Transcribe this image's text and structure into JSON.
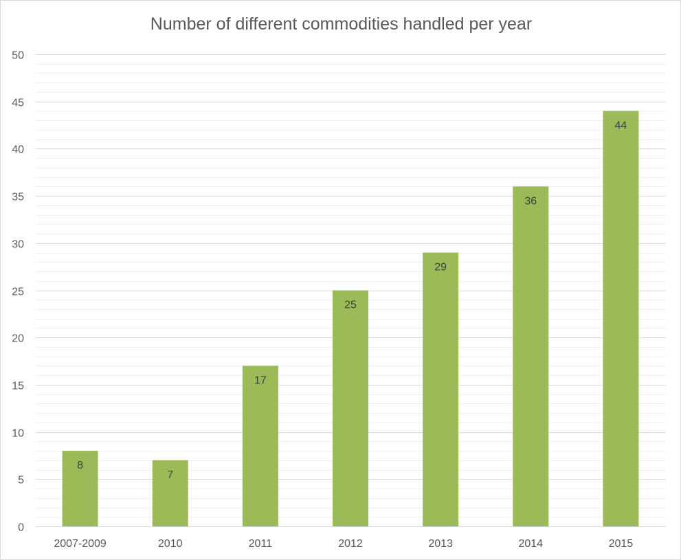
{
  "chart_data": {
    "type": "bar",
    "title": "Number of different commodities handled per year",
    "xlabel": "",
    "ylabel": "",
    "categories": [
      "2007-2009",
      "2010",
      "2011",
      "2012",
      "2013",
      "2014",
      "2015"
    ],
    "values": [
      8,
      7,
      17,
      25,
      29,
      36,
      44
    ],
    "ylim": [
      0,
      50
    ],
    "major_tick_step": 5,
    "minor_gridlines": true,
    "grid": true,
    "data_labels": true,
    "legend": "none",
    "bar_color": "#9bbb59",
    "grid_color": "#d9d9d9",
    "minor_grid_color": "#f0f0f0",
    "text_color": "#595959"
  }
}
